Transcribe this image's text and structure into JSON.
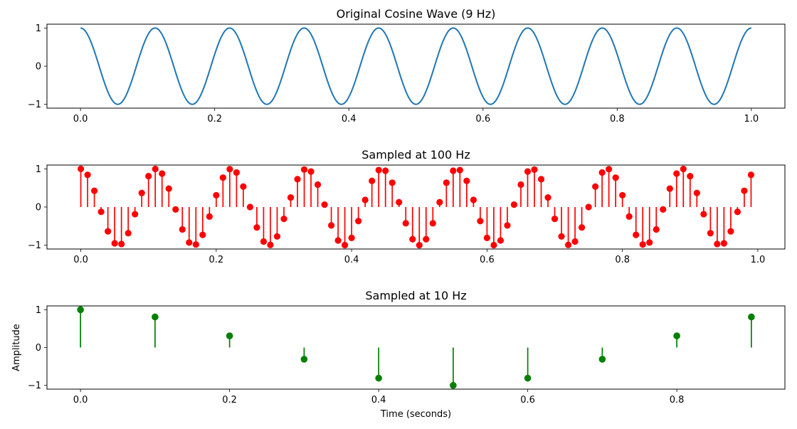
{
  "colors": {
    "continuous": "#1f77b4",
    "sampled_100hz": "#ff0000",
    "sampled_10hz": "#008000"
  },
  "chart_data": [
    {
      "type": "line",
      "title": "Original Cosine Wave (9 Hz)",
      "function": "cos(2*pi*9*t)",
      "frequency_hz": 9,
      "t_range": [
        0,
        1
      ],
      "points": 1000,
      "xlim": [
        -0.05,
        1.05
      ],
      "ylim": [
        -1.1,
        1.1
      ],
      "xticks": [
        0.0,
        0.2,
        0.4,
        0.6,
        0.8,
        1.0
      ],
      "xtick_labels": [
        "0.0",
        "0.2",
        "0.4",
        "0.6",
        "0.8",
        "1.0"
      ],
      "yticks": [
        1,
        0,
        -1
      ],
      "ytick_labels": [
        "1",
        "0",
        "−1"
      ],
      "xlabel": "",
      "ylabel": ""
    },
    {
      "type": "stem",
      "title": "Sampled at 100 Hz",
      "function": "cos(2*pi*9*t)",
      "frequency_hz": 9,
      "sample_rate_hz": 100,
      "t_range": [
        0,
        0.99
      ],
      "xlim": [
        -0.05,
        1.04
      ],
      "ylim": [
        -1.1,
        1.1
      ],
      "xticks": [
        0.0,
        0.2,
        0.4,
        0.6,
        0.8,
        1.0
      ],
      "xtick_labels": [
        "0.0",
        "0.2",
        "0.4",
        "0.6",
        "0.8",
        "1.0"
      ],
      "yticks": [
        1,
        0,
        -1
      ],
      "ytick_labels": [
        "1",
        "0",
        "−1"
      ],
      "xlabel": "",
      "ylabel": ""
    },
    {
      "type": "stem",
      "title": "Sampled at 10 Hz",
      "x": [
        0.0,
        0.1,
        0.2,
        0.3,
        0.4,
        0.5,
        0.6,
        0.7,
        0.8,
        0.9
      ],
      "values": [
        1.0,
        0.809,
        0.309,
        -0.309,
        -0.809,
        -1.0,
        -0.809,
        -0.309,
        0.309,
        0.809
      ],
      "xlim": [
        -0.045,
        0.945
      ],
      "ylim": [
        -1.1,
        1.1
      ],
      "xticks": [
        0.0,
        0.2,
        0.4,
        0.6,
        0.8
      ],
      "xtick_labels": [
        "0.0",
        "0.2",
        "0.4",
        "0.6",
        "0.8"
      ],
      "yticks": [
        1,
        0,
        -1
      ],
      "ytick_labels": [
        "1",
        "0",
        "−1"
      ],
      "xlabel": "Time (seconds)",
      "ylabel": "Amplitude"
    }
  ]
}
